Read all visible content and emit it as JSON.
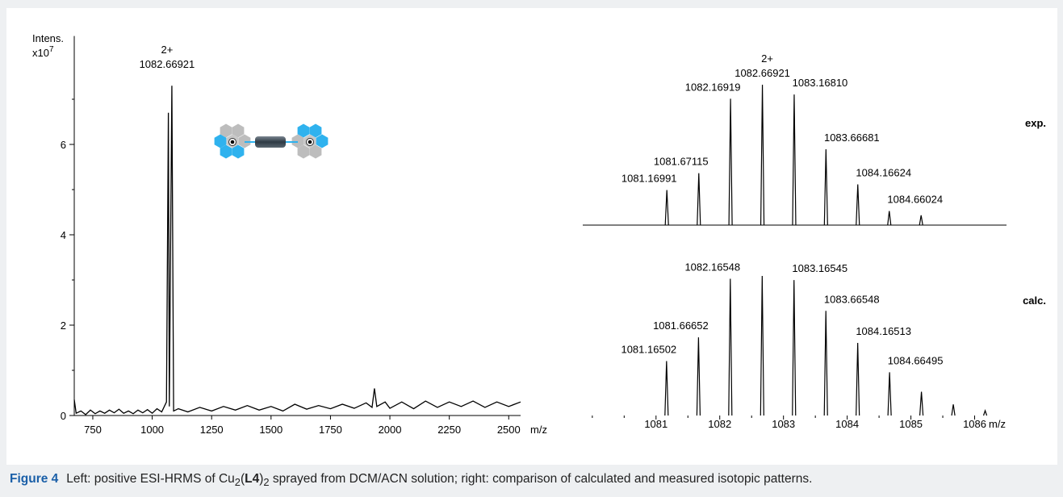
{
  "figure_label": "Figure 4",
  "caption": [
    "Left: positive ESI-HRMS of Cu",
    "2",
    "(",
    "L4",
    ")",
    "2",
    " sprayed from DCM/ACN solution; right: comparison of calculated and measured isotopic patterns."
  ],
  "chart_data": [
    {
      "type": "line",
      "y_label": "Intens.",
      "y_multiplier": "x10",
      "y_multiplier_exponent": "7",
      "x_label": "m/z",
      "annotation": [
        "2+",
        "1082.66921"
      ],
      "color": "#000000",
      "x": [
        672,
        680,
        700,
        720,
        740,
        760,
        780,
        800,
        820,
        840,
        860,
        880,
        900,
        920,
        940,
        960,
        980,
        1000,
        1020,
        1040,
        1060,
        1068,
        1072,
        1082.66921,
        1090,
        1110,
        1150,
        1200,
        1250,
        1300,
        1350,
        1400,
        1450,
        1500,
        1550,
        1600,
        1650,
        1700,
        1750,
        1800,
        1850,
        1900,
        1925,
        1935,
        1945,
        1980,
        2000,
        2050,
        2100,
        2150,
        2200,
        2250,
        2300,
        2350,
        2400,
        2450,
        2500,
        2550
      ],
      "values": [
        0.35,
        0.05,
        0.1,
        0.02,
        0.12,
        0.04,
        0.1,
        0.05,
        0.12,
        0.06,
        0.14,
        0.05,
        0.1,
        0.04,
        0.12,
        0.06,
        0.13,
        0.05,
        0.15,
        0.08,
        0.3,
        6.7,
        0.2,
        7.3,
        0.1,
        0.15,
        0.08,
        0.18,
        0.1,
        0.2,
        0.12,
        0.22,
        0.12,
        0.2,
        0.1,
        0.25,
        0.14,
        0.22,
        0.15,
        0.25,
        0.16,
        0.28,
        0.18,
        0.6,
        0.2,
        0.3,
        0.16,
        0.3,
        0.15,
        0.32,
        0.18,
        0.3,
        0.2,
        0.32,
        0.18,
        0.3,
        0.2,
        0.3
      ],
      "xlim": [
        672,
        2550
      ],
      "xticks": [
        750,
        1000,
        1250,
        1500,
        1750,
        2000,
        2250,
        2500
      ],
      "ylim": [
        0,
        8.4
      ],
      "yticks": [
        0,
        2,
        4,
        6
      ],
      "yminor_ticks": [
        1,
        3,
        5,
        7
      ]
    },
    {
      "type": "stem",
      "label": "exp.",
      "annotation": "2+",
      "color": "#000000",
      "x": [
        1081.16991,
        1081.67115,
        1082.16919,
        1082.66921,
        1083.1681,
        1083.66681,
        1084.16624,
        1084.66024,
        1085.16
      ],
      "values": [
        25,
        37,
        90,
        100,
        93,
        54,
        29,
        10,
        7
      ],
      "peak_labels": [
        "1081.16991",
        "1081.67115",
        "1082.16919",
        "1082.66921",
        "1083.16810",
        "1083.66681",
        "1084.16624",
        "1084.66024",
        null
      ],
      "xlim": [
        1079.85,
        1086.5
      ],
      "ylim": [
        0,
        100
      ]
    },
    {
      "type": "stem",
      "label": "calc.",
      "color": "#000000",
      "x_label": "m/z",
      "x": [
        1081.16502,
        1081.66652,
        1082.16548,
        1082.666,
        1083.16545,
        1083.66548,
        1084.16513,
        1084.66495,
        1085.165,
        1085.665,
        1086.165
      ],
      "values": [
        39,
        56,
        98,
        100,
        97,
        75,
        52,
        31,
        17,
        8,
        3.5
      ],
      "peak_labels": [
        "1081.16502",
        "1081.66652",
        "1082.16548",
        null,
        "1083.16545",
        "1083.66548",
        "1084.16513",
        "1084.66495",
        null,
        null,
        null
      ],
      "xlim": [
        1079.85,
        1086.5
      ],
      "xticks": [
        1081,
        1082,
        1083,
        1084,
        1085,
        1086
      ],
      "xminor_ticks": [
        1080,
        1080.5,
        1081.5,
        1082.5,
        1083.5,
        1084.5,
        1085.5
      ],
      "ylim": [
        0,
        100
      ]
    }
  ]
}
